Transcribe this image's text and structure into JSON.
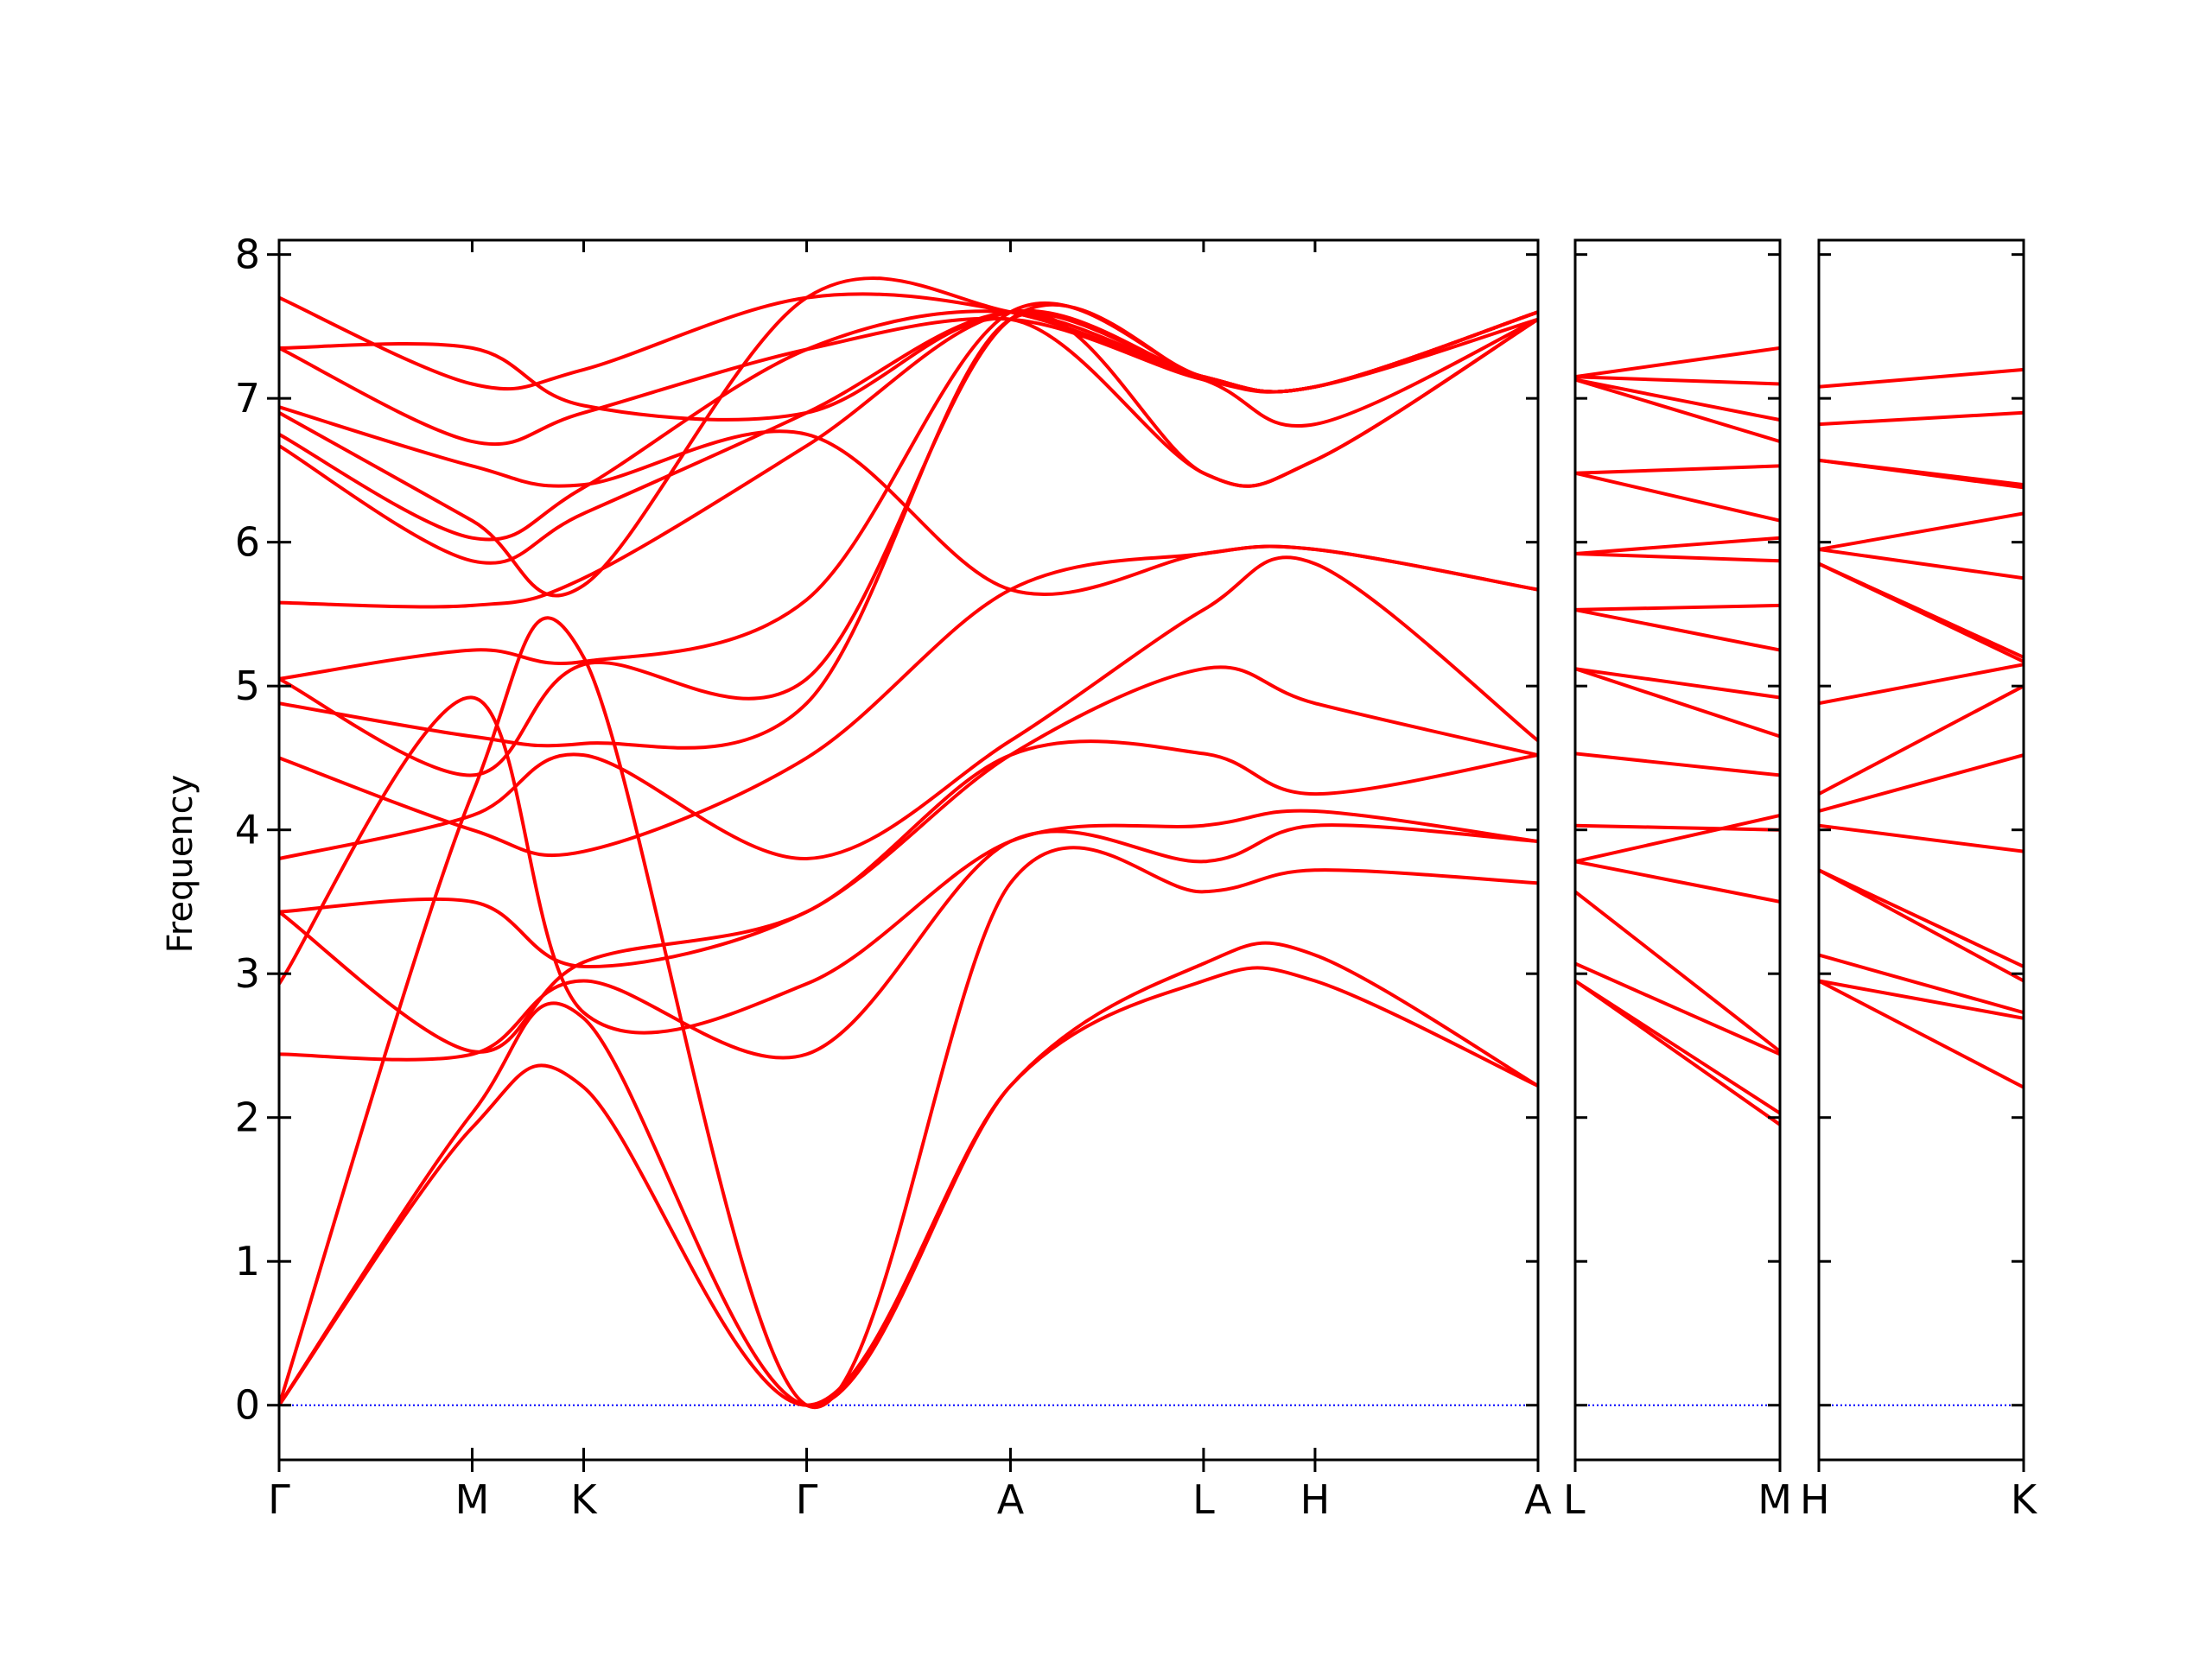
{
  "chart_data": {
    "type": "line",
    "title": "",
    "xlabel": "",
    "ylabel": "Frequency",
    "ylim": [
      -0.38,
      8.1
    ],
    "y_ticks": [
      0,
      1,
      2,
      3,
      4,
      5,
      6,
      7,
      8
    ],
    "y_tick_labels": [
      "0",
      "1",
      "2",
      "3",
      "4",
      "5",
      "6",
      "7",
      "8"
    ],
    "line_color": "#ff0000",
    "zero_line_color": "#0000ff",
    "grid": false,
    "legend": "none",
    "panels": [
      {
        "name": "panel-1",
        "x_tick_labels": [
          "Γ",
          "M",
          "K",
          "Γ",
          "A",
          "L",
          "H",
          "A"
        ],
        "x_tick_positions": [
          0,
          0.866,
          1.366,
          2.366,
          3.28,
          4.146,
          4.646,
          5.646
        ],
        "bands": [
          [
            [
              0,
              0
            ],
            [
              0.866,
              1.93
            ],
            [
              1.366,
              2.21
            ],
            [
              2.366,
              0
            ],
            [
              3.28,
              2.22
            ],
            [
              4.146,
              2.95
            ],
            [
              4.646,
              2.95
            ],
            [
              5.646,
              2.22
            ]
          ],
          [
            [
              0,
              0
            ],
            [
              0.866,
              2.03
            ],
            [
              1.366,
              2.69
            ],
            [
              2.366,
              0
            ],
            [
              3.28,
              2.22
            ],
            [
              4.146,
              3.07
            ],
            [
              4.646,
              3.13
            ],
            [
              5.646,
              2.22
            ]
          ],
          [
            [
              0,
              0
            ],
            [
              0.866,
              4.25
            ],
            [
              1.366,
              5.2
            ],
            [
              2.366,
              0
            ],
            [
              3.28,
              3.63
            ],
            [
              4.146,
              3.57
            ],
            [
              4.646,
              3.72
            ],
            [
              5.646,
              3.63
            ]
          ],
          [
            [
              0,
              2.44
            ],
            [
              0.866,
              2.44
            ],
            [
              1.366,
              2.95
            ],
            [
              2.366,
              2.44
            ],
            [
              3.28,
              3.92
            ],
            [
              4.146,
              3.78
            ],
            [
              4.646,
              4.03
            ],
            [
              5.646,
              3.92
            ]
          ],
          [
            [
              0,
              2.93
            ],
            [
              0.866,
              4.92
            ],
            [
              1.366,
              2.73
            ],
            [
              2.366,
              2.93
            ],
            [
              3.28,
              3.92
            ],
            [
              4.146,
              4.03
            ],
            [
              4.646,
              4.13
            ],
            [
              5.646,
              3.92
            ]
          ],
          [
            [
              0,
              3.43
            ],
            [
              0.866,
              2.46
            ],
            [
              1.366,
              3.08
            ],
            [
              2.366,
              3.43
            ],
            [
              3.28,
              4.52
            ],
            [
              4.146,
              4.53
            ],
            [
              4.646,
              4.25
            ],
            [
              5.646,
              4.52
            ]
          ],
          [
            [
              0,
              3.43
            ],
            [
              0.866,
              3.5
            ],
            [
              1.366,
              3.05
            ],
            [
              2.366,
              3.43
            ],
            [
              3.28,
              4.52
            ],
            [
              4.146,
              5.12
            ],
            [
              4.646,
              4.88
            ],
            [
              5.646,
              4.52
            ]
          ],
          [
            [
              0,
              3.8
            ],
            [
              0.866,
              4.1
            ],
            [
              1.366,
              4.52
            ],
            [
              2.366,
              3.8
            ],
            [
              3.28,
              4.62
            ],
            [
              4.146,
              5.53
            ],
            [
              4.646,
              5.85
            ],
            [
              5.646,
              4.62
            ]
          ],
          [
            [
              0,
              4.5
            ],
            [
              0.866,
              4.0
            ],
            [
              1.366,
              3.85
            ],
            [
              2.366,
              4.5
            ],
            [
              3.28,
              5.67
            ],
            [
              4.146,
              5.92
            ],
            [
              4.646,
              5.95
            ],
            [
              5.646,
              5.67
            ]
          ],
          [
            [
              0,
              4.88
            ],
            [
              0.866,
              4.65
            ],
            [
              1.366,
              4.6
            ],
            [
              2.366,
              4.88
            ],
            [
              3.28,
              7.55
            ],
            [
              4.146,
              6.48
            ],
            [
              4.646,
              6.57
            ],
            [
              5.646,
              7.55
            ]
          ],
          [
            [
              0,
              5.05
            ],
            [
              0.866,
              4.38
            ],
            [
              1.366,
              5.15
            ],
            [
              2.366,
              5.05
            ],
            [
              3.28,
              7.55
            ],
            [
              4.146,
              7.13
            ],
            [
              4.646,
              6.82
            ],
            [
              5.646,
              7.55
            ]
          ],
          [
            [
              0,
              5.05
            ],
            [
              0.866,
              5.25
            ],
            [
              1.366,
              5.17
            ],
            [
              2.366,
              5.6
            ],
            [
              3.28,
              7.6
            ],
            [
              4.146,
              7.15
            ],
            [
              4.646,
              7.08
            ],
            [
              5.646,
              7.6
            ]
          ],
          [
            [
              0,
              5.58
            ],
            [
              0.866,
              5.56
            ],
            [
              1.366,
              5.75
            ],
            [
              2.366,
              6.67
            ],
            [
              3.28,
              7.6
            ],
            [
              4.146,
              7.15
            ],
            [
              4.646,
              7.08
            ],
            [
              5.646,
              7.6
            ]
          ],
          [
            [
              0,
              6.67
            ],
            [
              0.866,
              5.87
            ],
            [
              1.366,
              6.2
            ],
            [
              2.366,
              6.9
            ],
            [
              3.28,
              7.6
            ],
            [
              4.146,
              7.15
            ],
            [
              4.646,
              7.08
            ],
            [
              5.646,
              7.6
            ]
          ],
          [
            [
              0,
              6.75
            ],
            [
              0.866,
              6.03
            ],
            [
              1.366,
              6.38
            ],
            [
              2.366,
              7.34
            ],
            [
              3.28,
              7.6
            ],
            [
              4.146,
              7.15
            ],
            [
              4.646,
              7.08
            ],
            [
              5.646,
              7.6
            ]
          ],
          [
            [
              0,
              6.9
            ],
            [
              0.866,
              6.15
            ],
            [
              1.366,
              5.7
            ],
            [
              2.366,
              7.7
            ],
            [
              3.28,
              7.6
            ],
            [
              4.146,
              7.15
            ],
            [
              4.646,
              7.08
            ],
            [
              5.646,
              7.6
            ]
          ],
          [
            [
              0,
              6.94
            ],
            [
              0.866,
              6.53
            ],
            [
              1.366,
              6.4
            ],
            [
              2.366,
              6.75
            ],
            [
              3.28,
              5.67
            ],
            [
              4.146,
              5.92
            ],
            [
              4.646,
              5.95
            ],
            [
              5.646,
              5.67
            ]
          ],
          [
            [
              0,
              7.35
            ],
            [
              0.866,
              6.7
            ],
            [
              1.366,
              6.9
            ],
            [
              2.366,
              7.34
            ],
            [
              3.28,
              7.55
            ],
            [
              4.146,
              7.13
            ],
            [
              4.646,
              7.08
            ],
            [
              5.646,
              7.55
            ]
          ],
          [
            [
              0,
              7.7
            ],
            [
              0.866,
              7.1
            ],
            [
              1.366,
              7.2
            ],
            [
              2.366,
              7.7
            ],
            [
              3.28,
              7.6
            ],
            [
              4.146,
              7.15
            ],
            [
              4.646,
              7.08
            ],
            [
              5.646,
              7.6
            ]
          ],
          [
            [
              0,
              7.35
            ],
            [
              0.866,
              7.35
            ],
            [
              1.366,
              6.95
            ],
            [
              2.366,
              6.9
            ],
            [
              3.28,
              7.55
            ],
            [
              4.146,
              6.48
            ],
            [
              4.646,
              6.57
            ],
            [
              5.646,
              7.55
            ]
          ]
        ]
      },
      {
        "name": "panel-2",
        "x_tick_labels": [
          "L",
          "M"
        ],
        "x_tick_positions": [
          0,
          1
        ],
        "bands": [
          [
            [
              0,
              2.95
            ],
            [
              1,
              1.95
            ]
          ],
          [
            [
              0,
              2.95
            ],
            [
              1,
              2.03
            ]
          ],
          [
            [
              0,
              3.07
            ],
            [
              1,
              2.44
            ]
          ],
          [
            [
              0,
              3.57
            ],
            [
              1,
              2.46
            ]
          ],
          [
            [
              0,
              3.78
            ],
            [
              1,
              3.5
            ]
          ],
          [
            [
              0,
              4.03
            ],
            [
              1,
              4.0
            ]
          ],
          [
            [
              0,
              3.78
            ],
            [
              1,
              4.1
            ]
          ],
          [
            [
              0,
              4.53
            ],
            [
              1,
              4.38
            ]
          ],
          [
            [
              0,
              5.12
            ],
            [
              1,
              4.65
            ]
          ],
          [
            [
              0,
              5.12
            ],
            [
              1,
              4.92
            ]
          ],
          [
            [
              0,
              5.53
            ],
            [
              1,
              5.25
            ]
          ],
          [
            [
              0,
              5.53
            ],
            [
              1,
              5.56
            ]
          ],
          [
            [
              0,
              5.92
            ],
            [
              1,
              5.87
            ]
          ],
          [
            [
              0,
              5.92
            ],
            [
              1,
              6.03
            ]
          ],
          [
            [
              0,
              6.48
            ],
            [
              1,
              6.15
            ]
          ],
          [
            [
              0,
              6.48
            ],
            [
              1,
              6.53
            ]
          ],
          [
            [
              0,
              7.13
            ],
            [
              1,
              6.7
            ]
          ],
          [
            [
              0,
              7.13
            ],
            [
              1,
              6.85
            ]
          ],
          [
            [
              0,
              7.15
            ],
            [
              1,
              7.1
            ]
          ],
          [
            [
              0,
              7.15
            ],
            [
              1,
              7.35
            ]
          ]
        ]
      },
      {
        "name": "panel-3",
        "x_tick_labels": [
          "H",
          "K"
        ],
        "x_tick_positions": [
          0,
          1
        ],
        "bands": [
          [
            [
              0,
              2.95
            ],
            [
              1,
              2.21
            ]
          ],
          [
            [
              0,
              2.95
            ],
            [
              1,
              2.69
            ]
          ],
          [
            [
              0,
              3.13
            ],
            [
              1,
              2.73
            ]
          ],
          [
            [
              0,
              3.72
            ],
            [
              1,
              2.95
            ]
          ],
          [
            [
              0,
              3.72
            ],
            [
              1,
              3.05
            ]
          ],
          [
            [
              0,
              4.03
            ],
            [
              1,
              3.85
            ]
          ],
          [
            [
              0,
              4.13
            ],
            [
              1,
              4.52
            ]
          ],
          [
            [
              0,
              4.25
            ],
            [
              1,
              5.0
            ]
          ],
          [
            [
              0,
              4.88
            ],
            [
              1,
              5.15
            ]
          ],
          [
            [
              0,
              5.85
            ],
            [
              1,
              5.17
            ]
          ],
          [
            [
              0,
              5.85
            ],
            [
              1,
              5.2
            ]
          ],
          [
            [
              0,
              5.95
            ],
            [
              1,
              5.75
            ]
          ],
          [
            [
              0,
              5.95
            ],
            [
              1,
              6.2
            ]
          ],
          [
            [
              0,
              6.57
            ],
            [
              1,
              6.38
            ]
          ],
          [
            [
              0,
              6.57
            ],
            [
              1,
              6.4
            ]
          ],
          [
            [
              0,
              6.82
            ],
            [
              1,
              6.9
            ]
          ],
          [
            [
              0,
              7.08
            ],
            [
              1,
              7.2
            ]
          ]
        ]
      }
    ]
  }
}
